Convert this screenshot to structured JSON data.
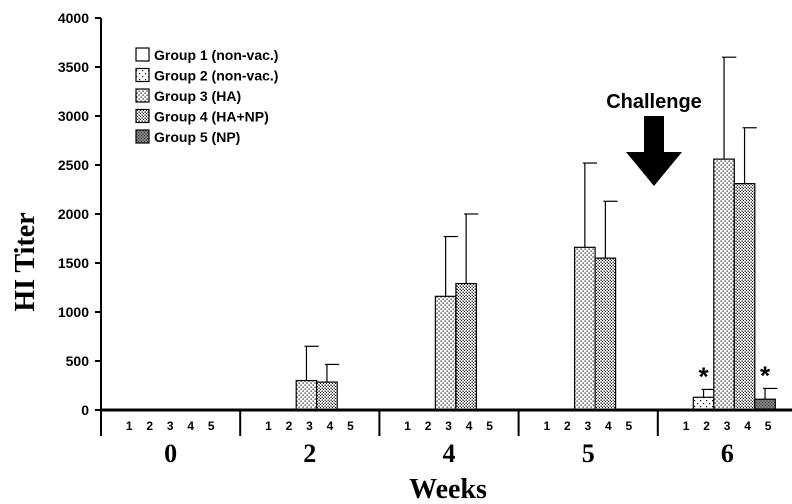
{
  "chart_data": {
    "type": "bar",
    "ylabel": "HI Titer",
    "xlabel": "Weeks",
    "ylim": [
      0,
      4000
    ],
    "yticks": [
      "0",
      "500",
      "1000",
      "1500",
      "2000",
      "2500",
      "3000",
      "3500",
      "4000"
    ],
    "categories": [
      "0",
      "2",
      "4",
      "5",
      "6"
    ],
    "group_labels": [
      "1",
      "2",
      "3",
      "4",
      "5"
    ],
    "series": [
      {
        "name": "Group 1 (non-vac.)",
        "pattern": "white",
        "values": [
          0,
          0,
          0,
          0,
          0
        ],
        "errors": [
          0,
          0,
          0,
          0,
          0
        ]
      },
      {
        "name": "Group 2 (non-vac.)",
        "pattern": "sparse-dots",
        "values": [
          0,
          0,
          0,
          0,
          130
        ],
        "errors": [
          0,
          0,
          0,
          0,
          80
        ]
      },
      {
        "name": "Group 3 (HA)",
        "pattern": "dots",
        "values": [
          0,
          300,
          1160,
          1660,
          2560
        ],
        "errors": [
          0,
          350,
          610,
          860,
          1040
        ]
      },
      {
        "name": "Group 4 (HA+NP)",
        "pattern": "dense-dots",
        "values": [
          0,
          285,
          1290,
          1550,
          2310
        ],
        "errors": [
          0,
          180,
          710,
          580,
          570
        ]
      },
      {
        "name": "Group 5 (NP)",
        "pattern": "grey",
        "values": [
          0,
          0,
          0,
          0,
          110
        ],
        "errors": [
          0,
          0,
          0,
          0,
          110
        ]
      }
    ],
    "annotations": {
      "challenge_label": "Challenge",
      "challenge_after_category": "5",
      "significance_marker": "*",
      "significant": [
        {
          "series": 1,
          "category": 4
        },
        {
          "series": 4,
          "category": 4
        }
      ]
    },
    "legend_position": "top-left",
    "grid": false
  }
}
